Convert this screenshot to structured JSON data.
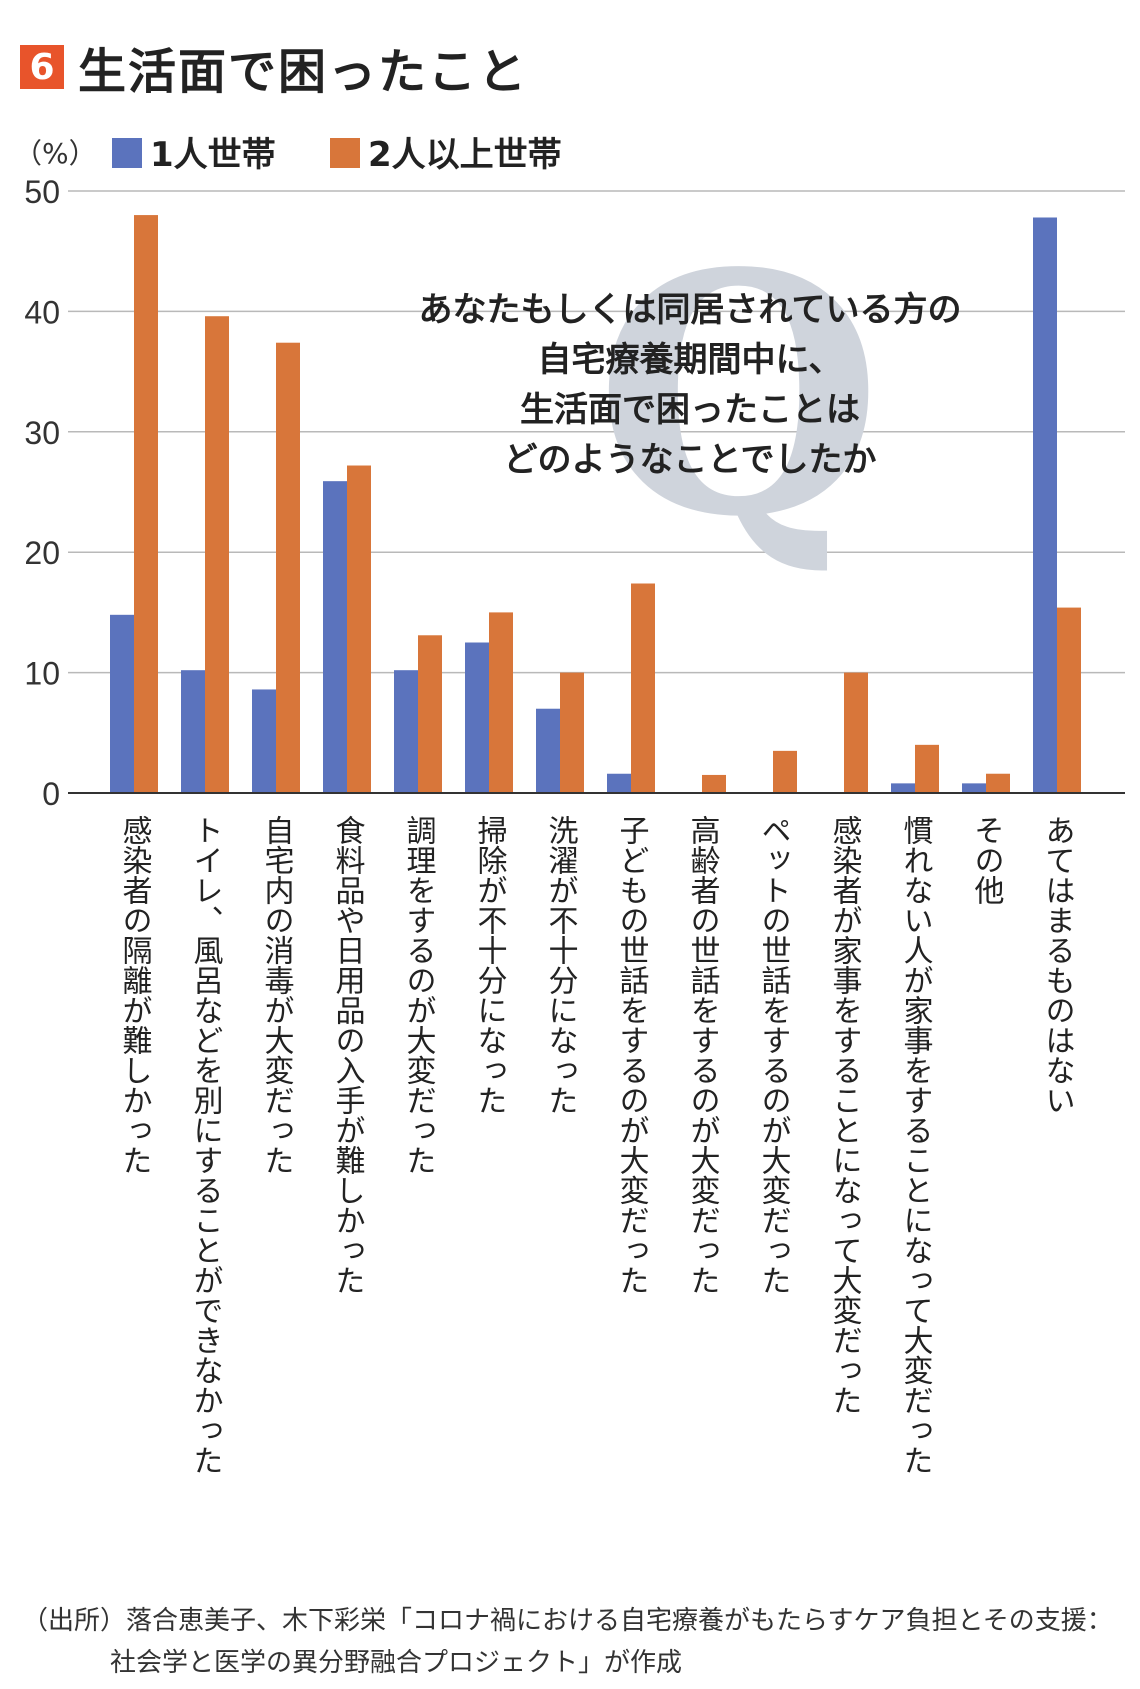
{
  "header": {
    "number": "6",
    "title": "生活面で困ったこと"
  },
  "question": {
    "mark": "Q",
    "lines": [
      "あなたもしくは同居されている方の",
      "自宅療養期間中に、",
      "生活面で困ったことは",
      "どのようなことでしたか"
    ]
  },
  "source": {
    "line1": "（出所）落合恵美子、木下彩栄「コロナ禍における自宅療養がもたらすケア負担とその支援：",
    "line2": "社会学と医学の異分野融合プロジェクト」が作成"
  },
  "colors": {
    "accent": "#e8542b",
    "series1": "#5b73bd",
    "series2": "#d8763a",
    "grid": "#b9b9b9"
  },
  "chart_data": {
    "type": "bar",
    "unit_label": "（%）",
    "ylim": [
      0,
      50
    ],
    "yticks": [
      0,
      10,
      20,
      30,
      40,
      50
    ],
    "grid": true,
    "legend_position": "top-left",
    "categories": [
      "感染者の隔離が難しかった",
      "トイレ、風呂などを別にすることができなかった",
      "自宅内の消毒が大変だった",
      "食料品や日用品の入手が難しかった",
      "調理をするのが大変だった",
      "掃除が不十分になった",
      "洗濯が不十分になった",
      "子どもの世話をするのが大変だった",
      "高齢者の世話をするのが大変だった",
      "ペットの世話をするのが大変だった",
      "感染者が家事をすることになって大変だった",
      "慣れない人が家事をすることになって大変だった",
      "その他",
      "あてはまるものはない"
    ],
    "series": [
      {
        "name": "1人世帯",
        "values": [
          14.8,
          10.2,
          8.6,
          25.9,
          10.2,
          12.5,
          7.0,
          1.6,
          0,
          0,
          0,
          0.8,
          0.8,
          47.8
        ]
      },
      {
        "name": "2人以上世帯",
        "values": [
          48.0,
          39.6,
          37.4,
          27.2,
          13.1,
          15.0,
          10.0,
          17.4,
          1.5,
          3.5,
          10.0,
          4.0,
          1.6,
          15.4
        ]
      }
    ]
  }
}
